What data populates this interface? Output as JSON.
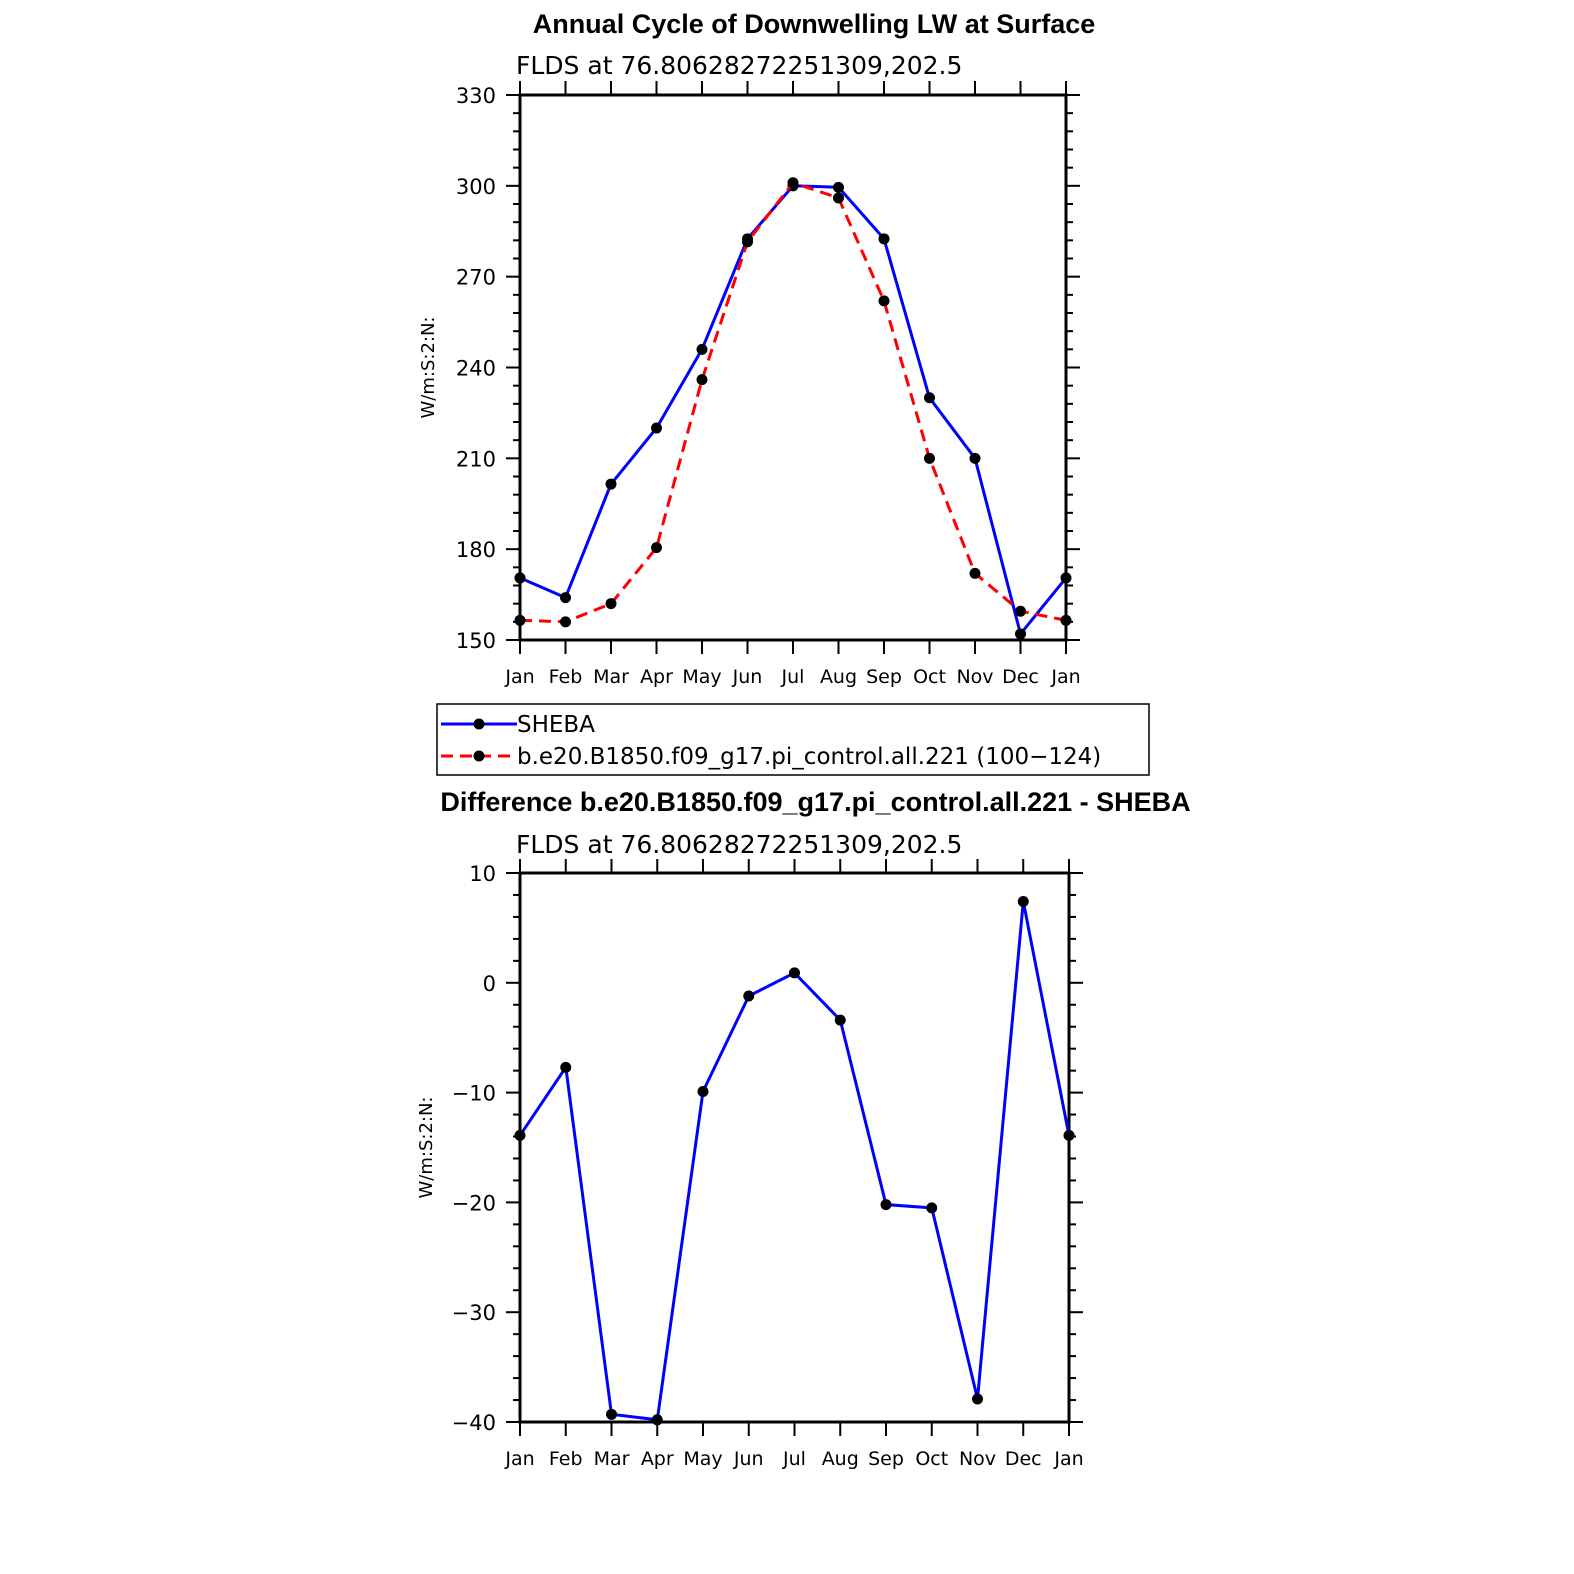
{
  "chart_data": [
    {
      "type": "line",
      "title": "Annual Cycle of Downwelling LW at Surface",
      "subtitle": "FLDS at 76.80628272251309,202.5",
      "ylabel": "W/m:S:2:N:",
      "ylim": [
        150,
        330
      ],
      "yticks": [
        150,
        180,
        210,
        240,
        270,
        300,
        330
      ],
      "categories": [
        "Jan",
        "Feb",
        "Mar",
        "Apr",
        "May",
        "Jun",
        "Jul",
        "Aug",
        "Sep",
        "Oct",
        "Nov",
        "Dec",
        "Jan"
      ],
      "grid": false,
      "legend_position": "bottom",
      "series": [
        {
          "name": "SHEBA",
          "color": "#0000ff",
          "dash": "solid",
          "values": [
            170.5,
            164,
            201.5,
            220,
            246,
            282.5,
            300,
            299.5,
            282.5,
            230,
            210,
            152,
            170.5
          ]
        },
        {
          "name": "b.e20.B1850.f09_g17.pi_control.all.221 (100−124)",
          "color": "#ff0000",
          "dash": "dashed",
          "values": [
            156.5,
            156,
            162,
            180.5,
            236,
            281.5,
            301,
            296,
            262,
            210,
            172,
            159.5,
            156.5
          ]
        }
      ]
    },
    {
      "type": "line",
      "title": "Difference b.e20.B1850.f09_g17.pi_control.all.221 - SHEBA",
      "subtitle": "FLDS at 76.80628272251309,202.5",
      "ylabel": "W/m:S:2:N:",
      "ylim": [
        -40,
        10
      ],
      "yticks": [
        -40,
        -30,
        -20,
        -10,
        0,
        10
      ],
      "ytick_labels": [
        "−40",
        "−30",
        "−20",
        "−10",
        "0",
        "10"
      ],
      "categories": [
        "Jan",
        "Feb",
        "Mar",
        "Apr",
        "May",
        "Jun",
        "Jul",
        "Aug",
        "Sep",
        "Oct",
        "Nov",
        "Dec",
        "Jan"
      ],
      "grid": false,
      "series": [
        {
          "color": "#0000ff",
          "dash": "solid",
          "values": [
            -13.9,
            -7.7,
            -39.3,
            -39.8,
            -9.9,
            -1.2,
            0.9,
            -3.4,
            -20.2,
            -20.5,
            -37.9,
            7.4,
            -13.9
          ]
        }
      ]
    }
  ]
}
